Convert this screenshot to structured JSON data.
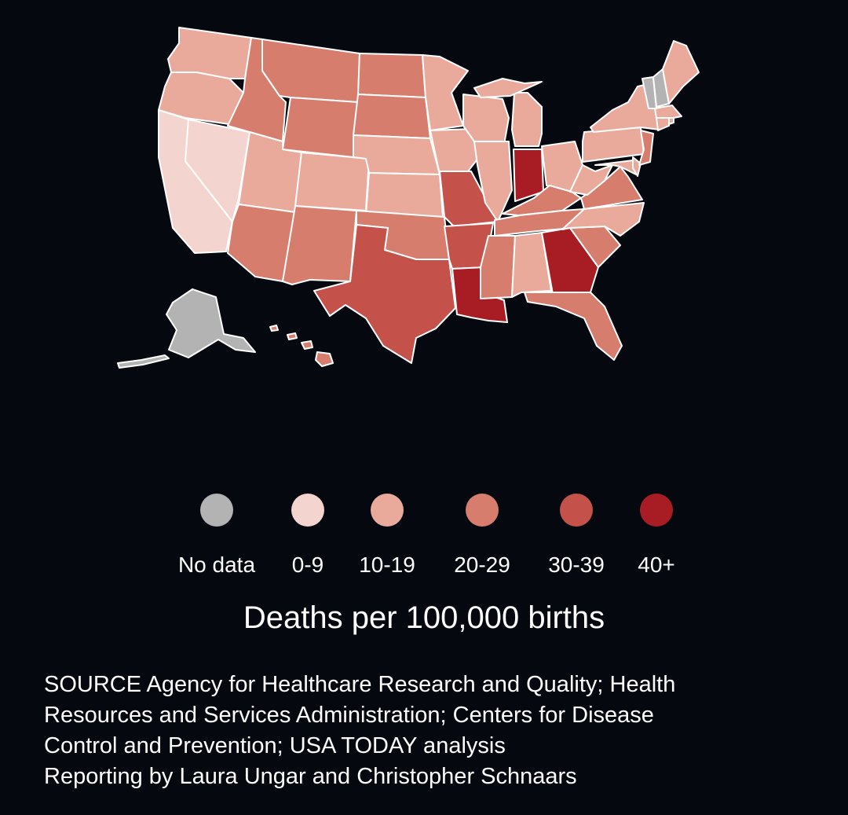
{
  "legend": {
    "title": "Deaths per 100,000 births",
    "bins": [
      {
        "label": "No data",
        "color": "#b3b3b3"
      },
      {
        "label": "0-9",
        "color": "#f4d4ce"
      },
      {
        "label": "10-19",
        "color": "#e9aa9c"
      },
      {
        "label": "20-29",
        "color": "#d67d6e"
      },
      {
        "label": "30-39",
        "color": "#c4524a"
      },
      {
        "label": "40+",
        "color": "#a81c24"
      }
    ]
  },
  "credits": {
    "line1": "SOURCE Agency for Healthcare Research and Quality; Health",
    "line2": "Resources and Services Administration; Centers for Disease",
    "line3": "Control and Prevention; USA TODAY analysis",
    "line4": "Reporting by Laura Ungar and Christopher Schnaars"
  },
  "map_data": {
    "type": "choropleth",
    "measure": "Deaths per 100,000 births",
    "states": [
      {
        "name": "Washington",
        "bin": "10-19"
      },
      {
        "name": "Oregon",
        "bin": "10-19"
      },
      {
        "name": "California",
        "bin": "0-9"
      },
      {
        "name": "Nevada",
        "bin": "0-9"
      },
      {
        "name": "Idaho",
        "bin": "20-29"
      },
      {
        "name": "Montana",
        "bin": "20-29"
      },
      {
        "name": "Wyoming",
        "bin": "20-29"
      },
      {
        "name": "Utah",
        "bin": "10-19"
      },
      {
        "name": "Arizona",
        "bin": "20-29"
      },
      {
        "name": "Colorado",
        "bin": "10-19"
      },
      {
        "name": "New Mexico",
        "bin": "20-29"
      },
      {
        "name": "North Dakota",
        "bin": "20-29"
      },
      {
        "name": "South Dakota",
        "bin": "20-29"
      },
      {
        "name": "Nebraska",
        "bin": "10-19"
      },
      {
        "name": "Kansas",
        "bin": "10-19"
      },
      {
        "name": "Oklahoma",
        "bin": "20-29"
      },
      {
        "name": "Texas",
        "bin": "30-39"
      },
      {
        "name": "Minnesota",
        "bin": "10-19"
      },
      {
        "name": "Iowa",
        "bin": "10-19"
      },
      {
        "name": "Missouri",
        "bin": "30-39"
      },
      {
        "name": "Arkansas",
        "bin": "30-39"
      },
      {
        "name": "Louisiana",
        "bin": "40+"
      },
      {
        "name": "Wisconsin",
        "bin": "10-19"
      },
      {
        "name": "Illinois",
        "bin": "10-19"
      },
      {
        "name": "Michigan",
        "bin": "10-19"
      },
      {
        "name": "Indiana",
        "bin": "40+"
      },
      {
        "name": "Ohio",
        "bin": "10-19"
      },
      {
        "name": "Kentucky",
        "bin": "20-29"
      },
      {
        "name": "Tennessee",
        "bin": "20-29"
      },
      {
        "name": "Mississippi",
        "bin": "20-29"
      },
      {
        "name": "Alabama",
        "bin": "10-19"
      },
      {
        "name": "Georgia",
        "bin": "40+"
      },
      {
        "name": "Florida",
        "bin": "20-29"
      },
      {
        "name": "South Carolina",
        "bin": "20-29"
      },
      {
        "name": "North Carolina",
        "bin": "10-19"
      },
      {
        "name": "Virginia",
        "bin": "20-29"
      },
      {
        "name": "West Virginia",
        "bin": "10-19"
      },
      {
        "name": "Maryland",
        "bin": "10-19"
      },
      {
        "name": "Delaware",
        "bin": "10-19"
      },
      {
        "name": "Pennsylvania",
        "bin": "10-19"
      },
      {
        "name": "New Jersey",
        "bin": "20-29"
      },
      {
        "name": "New York",
        "bin": "10-19"
      },
      {
        "name": "Connecticut",
        "bin": "10-19"
      },
      {
        "name": "Rhode Island",
        "bin": "10-19"
      },
      {
        "name": "Massachusetts",
        "bin": "10-19"
      },
      {
        "name": "Vermont",
        "bin": "No data"
      },
      {
        "name": "New Hampshire",
        "bin": "No data"
      },
      {
        "name": "Maine",
        "bin": "10-19"
      },
      {
        "name": "Alaska",
        "bin": "No data"
      },
      {
        "name": "Hawaii",
        "bin": "20-29"
      }
    ]
  }
}
